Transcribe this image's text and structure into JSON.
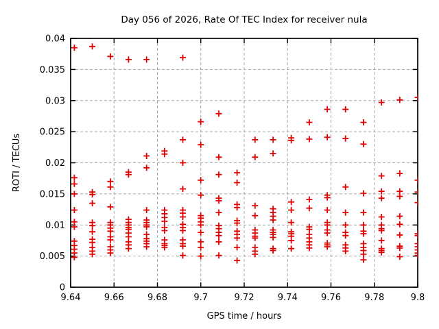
{
  "window": {
    "background": "#ffffff"
  },
  "colors": {
    "marker": "#e00000",
    "grid": "#a6a6a6",
    "border": "#000000",
    "text": "#000000"
  },
  "chart_data": {
    "type": "scatter",
    "marker_style": "plus",
    "title": "Day 056 of 2026, Rate Of TEC Index for receiver nula",
    "xlabel": "GPS time / hours",
    "ylabel": "ROTI / TECUs",
    "xlim": [
      9.64,
      9.8
    ],
    "ylim": [
      0,
      0.04
    ],
    "xticks": [
      9.64,
      9.66,
      9.68,
      9.7,
      9.72,
      9.74,
      9.76,
      9.78,
      9.8
    ],
    "xtick_labels": [
      "9.64",
      "9.66",
      "9.68",
      "9.7",
      "9.72",
      "9.74",
      "9.76",
      "9.78",
      "9.8"
    ],
    "yticks": [
      0,
      0.005,
      0.01,
      0.015,
      0.02,
      0.025,
      0.03,
      0.035,
      0.04
    ],
    "ytick_labels": [
      "0",
      "0.005",
      "0.01",
      "0.015",
      "0.02",
      "0.025",
      "0.03",
      "0.035",
      "0.04"
    ],
    "grid": true,
    "legend": "none",
    "series": [
      {
        "name": "ROTI",
        "color": "#e00000",
        "epochs": [
          {
            "t": 9.6417,
            "values": [
              0.0385,
              0.0176,
              0.0166,
              0.015,
              0.0124,
              0.0105,
              0.0097,
              0.0074,
              0.0067,
              0.0061,
              0.0055,
              0.0048
            ]
          },
          {
            "t": 9.65,
            "values": [
              0.0387,
              0.0153,
              0.0149,
              0.0135,
              0.0104,
              0.0099,
              0.0089,
              0.0077,
              0.0072,
              0.0064,
              0.0058,
              0.0053
            ]
          },
          {
            "t": 9.6583,
            "values": [
              0.0371,
              0.017,
              0.0161,
              0.0129,
              0.0104,
              0.01,
              0.0095,
              0.009,
              0.0081,
              0.0076,
              0.0065,
              0.006,
              0.0055
            ]
          },
          {
            "t": 9.6667,
            "values": [
              0.0366,
              0.0185,
              0.0181,
              0.0109,
              0.0104,
              0.01,
              0.0096,
              0.0093,
              0.0087,
              0.0081,
              0.0073,
              0.0068,
              0.0062
            ]
          },
          {
            "t": 9.675,
            "values": [
              0.0366,
              0.0211,
              0.0192,
              0.0124,
              0.0108,
              0.0104,
              0.01,
              0.0097,
              0.0085,
              0.0078,
              0.0074,
              0.007,
              0.0065
            ]
          },
          {
            "t": 9.6833,
            "values": [
              0.0219,
              0.0214,
              0.0124,
              0.0118,
              0.0112,
              0.0106,
              0.0096,
              0.0091,
              0.0076,
              0.007,
              0.0067,
              0.0064
            ]
          },
          {
            "t": 9.6917,
            "values": [
              0.0369,
              0.0237,
              0.02,
              0.0158,
              0.0124,
              0.0119,
              0.0113,
              0.0101,
              0.0096,
              0.0091,
              0.0076,
              0.007,
              0.0066,
              0.0051
            ]
          },
          {
            "t": 9.7,
            "values": [
              0.0266,
              0.0229,
              0.0172,
              0.0148,
              0.0115,
              0.0111,
              0.0105,
              0.01,
              0.0088,
              0.0073,
              0.0064,
              0.005
            ]
          },
          {
            "t": 9.7083,
            "values": [
              0.0279,
              0.0209,
              0.0181,
              0.0143,
              0.0139,
              0.012,
              0.0099,
              0.0094,
              0.0088,
              0.0083,
              0.0073,
              0.0051
            ]
          },
          {
            "t": 9.7167,
            "values": [
              0.0184,
              0.0168,
              0.0133,
              0.0128,
              0.0107,
              0.0103,
              0.009,
              0.0085,
              0.0079,
              0.0064,
              0.0043
            ]
          },
          {
            "t": 9.725,
            "values": [
              0.0237,
              0.0209,
              0.0131,
              0.0115,
              0.0092,
              0.0087,
              0.0082,
              0.0079,
              0.0064,
              0.0058,
              0.0053
            ]
          },
          {
            "t": 9.7333,
            "values": [
              0.0237,
              0.0215,
              0.0126,
              0.012,
              0.0114,
              0.0108,
              0.0092,
              0.0088,
              0.0085,
              0.008,
              0.0062,
              0.0059
            ]
          },
          {
            "t": 9.7417,
            "values": [
              0.024,
              0.0236,
              0.0137,
              0.0124,
              0.0104,
              0.0089,
              0.0086,
              0.0082,
              0.0075,
              0.0062
            ]
          },
          {
            "t": 9.75,
            "values": [
              0.0265,
              0.0238,
              0.0141,
              0.0127,
              0.0097,
              0.0093,
              0.0085,
              0.0079,
              0.0073,
              0.0068,
              0.0063
            ]
          },
          {
            "t": 9.7583,
            "values": [
              0.0286,
              0.0241,
              0.0148,
              0.0144,
              0.0124,
              0.0104,
              0.01,
              0.0092,
              0.0087,
              0.0071,
              0.0068,
              0.0065
            ]
          },
          {
            "t": 9.7667,
            "values": [
              0.0286,
              0.0239,
              0.0161,
              0.012,
              0.01,
              0.0088,
              0.0083,
              0.0068,
              0.0063,
              0.0058
            ]
          },
          {
            "t": 9.775,
            "values": [
              0.0265,
              0.023,
              0.0151,
              0.012,
              0.01,
              0.009,
              0.0086,
              0.007,
              0.0064,
              0.0059,
              0.0053,
              0.0044
            ]
          },
          {
            "t": 9.7833,
            "values": [
              0.0297,
              0.0179,
              0.0154,
              0.0143,
              0.0113,
              0.01,
              0.0094,
              0.0091,
              0.0075,
              0.0062,
              0.0059,
              0.0056
            ]
          },
          {
            "t": 9.7917,
            "values": [
              0.0301,
              0.0183,
              0.0154,
              0.0146,
              0.0114,
              0.0101,
              0.0084,
              0.0066,
              0.0063,
              0.0049
            ]
          },
          {
            "t": 9.8,
            "values": [
              0.0305,
              0.0172,
              0.0153,
              0.0136,
              0.0086,
              0.0083,
              0.007,
              0.0065,
              0.006,
              0.0055,
              0.0051
            ]
          }
        ]
      }
    ]
  }
}
